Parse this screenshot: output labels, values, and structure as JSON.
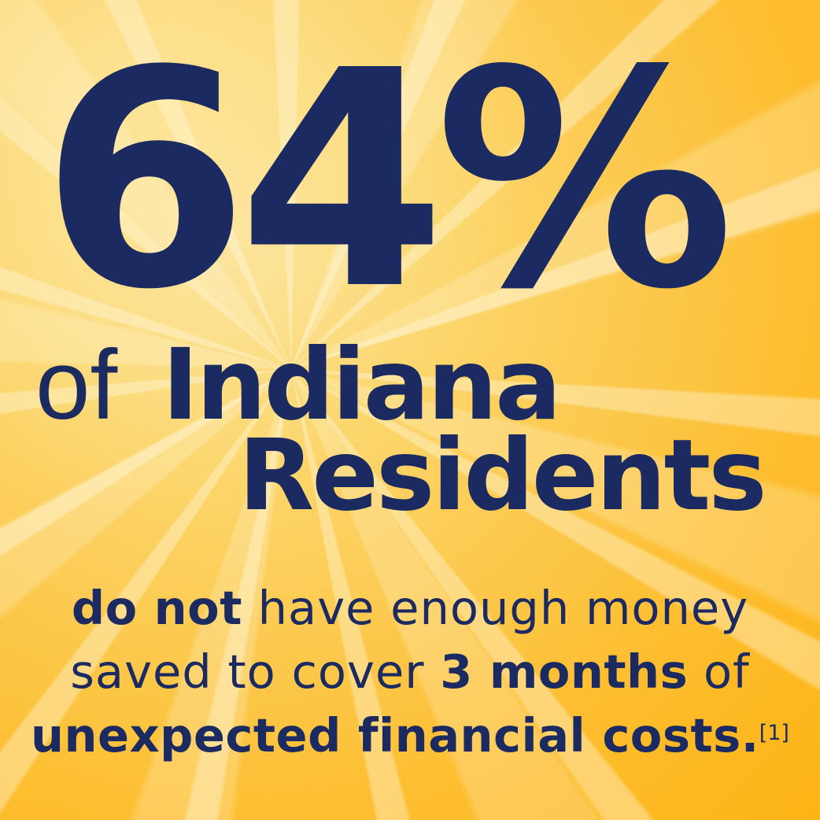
{
  "infographic": {
    "stat": {
      "value": "64%"
    },
    "headline": {
      "prefix": "of ",
      "word1": "Indiana",
      "word2": "Residents"
    },
    "description": {
      "line1": {
        "bold": "do not",
        "regular": " have enough money"
      },
      "line2": {
        "regular1": "saved to cover ",
        "bold": "3 months",
        "regular2": " of"
      },
      "line3": {
        "bold": "unexpected financial costs.",
        "footnote": "[1]"
      }
    },
    "colors": {
      "text_navy": "#1b2a60",
      "background_light_gold": "#fce091",
      "background_deep_gold": "#fdb415",
      "ray_highlight": "#fde8a6"
    }
  }
}
